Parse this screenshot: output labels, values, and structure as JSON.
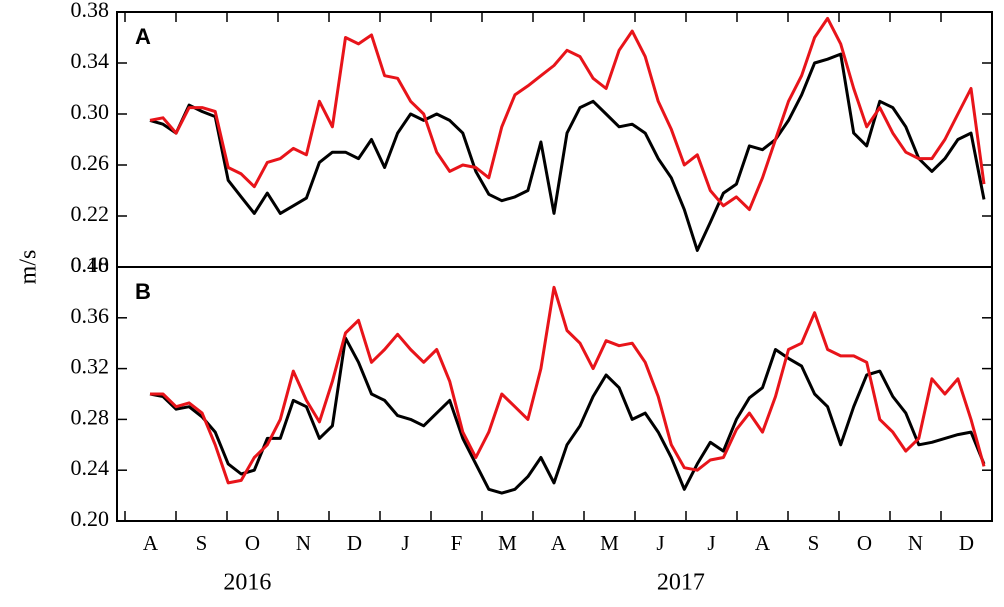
{
  "figure": {
    "y_label": "m/s",
    "categories": [
      "A",
      "S",
      "O",
      "N",
      "D",
      "J",
      "F",
      "M",
      "A",
      "M",
      "J",
      "J",
      "A",
      "S",
      "O",
      "N",
      "D"
    ],
    "years": [
      "2016",
      "2017"
    ]
  },
  "chart_data": [
    {
      "type": "line",
      "panel_label": "A",
      "ylim": [
        0.18,
        0.38
      ],
      "yticks": [
        0.18,
        0.22,
        0.26,
        {
          "value": 0.3,
          "label": "0.30"
        },
        0.34,
        0.38
      ],
      "series": [
        {
          "color": "#000000",
          "values": [
            0.295,
            0.292,
            0.285,
            0.307,
            0.302,
            0.298,
            0.248,
            0.235,
            0.222,
            0.238,
            0.222,
            0.228,
            0.234,
            0.262,
            0.27,
            0.27,
            0.265,
            0.28,
            0.258,
            0.285,
            0.3,
            0.295,
            0.3,
            0.295,
            0.285,
            0.255,
            0.237,
            0.232,
            0.235,
            0.24,
            0.278,
            0.222,
            0.285,
            0.305,
            0.31,
            0.3,
            0.29,
            0.292,
            0.285,
            0.265,
            0.25,
            0.225,
            0.193,
            0.215,
            0.238,
            0.245,
            0.275,
            0.272,
            0.28,
            0.295,
            0.315,
            0.34,
            0.343,
            0.347,
            0.285,
            0.275,
            0.31,
            0.305,
            0.29,
            0.265,
            0.255,
            0.265,
            0.28,
            0.285,
            0.233
          ]
        },
        {
          "color": "#e8141a",
          "values": [
            0.295,
            0.297,
            0.285,
            0.305,
            0.305,
            0.302,
            0.258,
            0.253,
            0.243,
            0.262,
            0.265,
            0.273,
            0.268,
            0.31,
            0.29,
            0.36,
            0.355,
            0.362,
            0.33,
            0.328,
            0.31,
            0.3,
            0.27,
            0.255,
            0.26,
            0.258,
            0.25,
            0.29,
            0.315,
            0.322,
            0.33,
            0.338,
            0.35,
            0.345,
            0.328,
            0.32,
            0.35,
            0.365,
            0.345,
            0.31,
            0.288,
            0.26,
            0.268,
            0.24,
            0.228,
            0.235,
            0.225,
            0.25,
            0.28,
            0.31,
            0.33,
            0.36,
            0.375,
            0.355,
            0.32,
            0.29,
            0.305,
            0.285,
            0.27,
            0.265,
            0.265,
            0.28,
            0.3,
            0.32,
            0.245
          ]
        }
      ]
    },
    {
      "type": "line",
      "panel_label": "B",
      "ylim": [
        0.2,
        0.4
      ],
      "yticks": [
        {
          "value": 0.2,
          "label": "0.20"
        },
        0.24,
        0.28,
        0.32,
        0.36,
        {
          "value": 0.4,
          "label": "0.40"
        }
      ],
      "series": [
        {
          "color": "#000000",
          "values": [
            0.3,
            0.298,
            0.288,
            0.29,
            0.282,
            0.27,
            0.245,
            0.237,
            0.24,
            0.265,
            0.265,
            0.295,
            0.29,
            0.265,
            0.275,
            0.344,
            0.325,
            0.3,
            0.295,
            0.283,
            0.28,
            0.275,
            0.285,
            0.295,
            0.265,
            0.245,
            0.225,
            0.222,
            0.225,
            0.235,
            0.25,
            0.23,
            0.26,
            0.275,
            0.298,
            0.315,
            0.305,
            0.28,
            0.285,
            0.27,
            0.25,
            0.225,
            0.245,
            0.262,
            0.255,
            0.28,
            0.297,
            0.305,
            0.335,
            0.328,
            0.322,
            0.3,
            0.29,
            0.26,
            0.29,
            0.315,
            0.318,
            0.298,
            0.285,
            0.26,
            0.262,
            0.265,
            0.268,
            0.27,
            0.245
          ]
        },
        {
          "color": "#e8141a",
          "values": [
            0.3,
            0.3,
            0.29,
            0.293,
            0.285,
            0.26,
            0.23,
            0.232,
            0.25,
            0.26,
            0.28,
            0.318,
            0.295,
            0.278,
            0.31,
            0.348,
            0.358,
            0.325,
            0.335,
            0.347,
            0.335,
            0.325,
            0.335,
            0.31,
            0.27,
            0.25,
            0.27,
            0.3,
            0.29,
            0.28,
            0.32,
            0.384,
            0.35,
            0.34,
            0.32,
            0.342,
            0.338,
            0.34,
            0.325,
            0.298,
            0.26,
            0.242,
            0.24,
            0.248,
            0.25,
            0.272,
            0.285,
            0.27,
            0.298,
            0.335,
            0.34,
            0.364,
            0.335,
            0.33,
            0.33,
            0.325,
            0.28,
            0.27,
            0.255,
            0.265,
            0.312,
            0.3,
            0.312,
            0.28,
            0.243
          ]
        }
      ]
    }
  ]
}
